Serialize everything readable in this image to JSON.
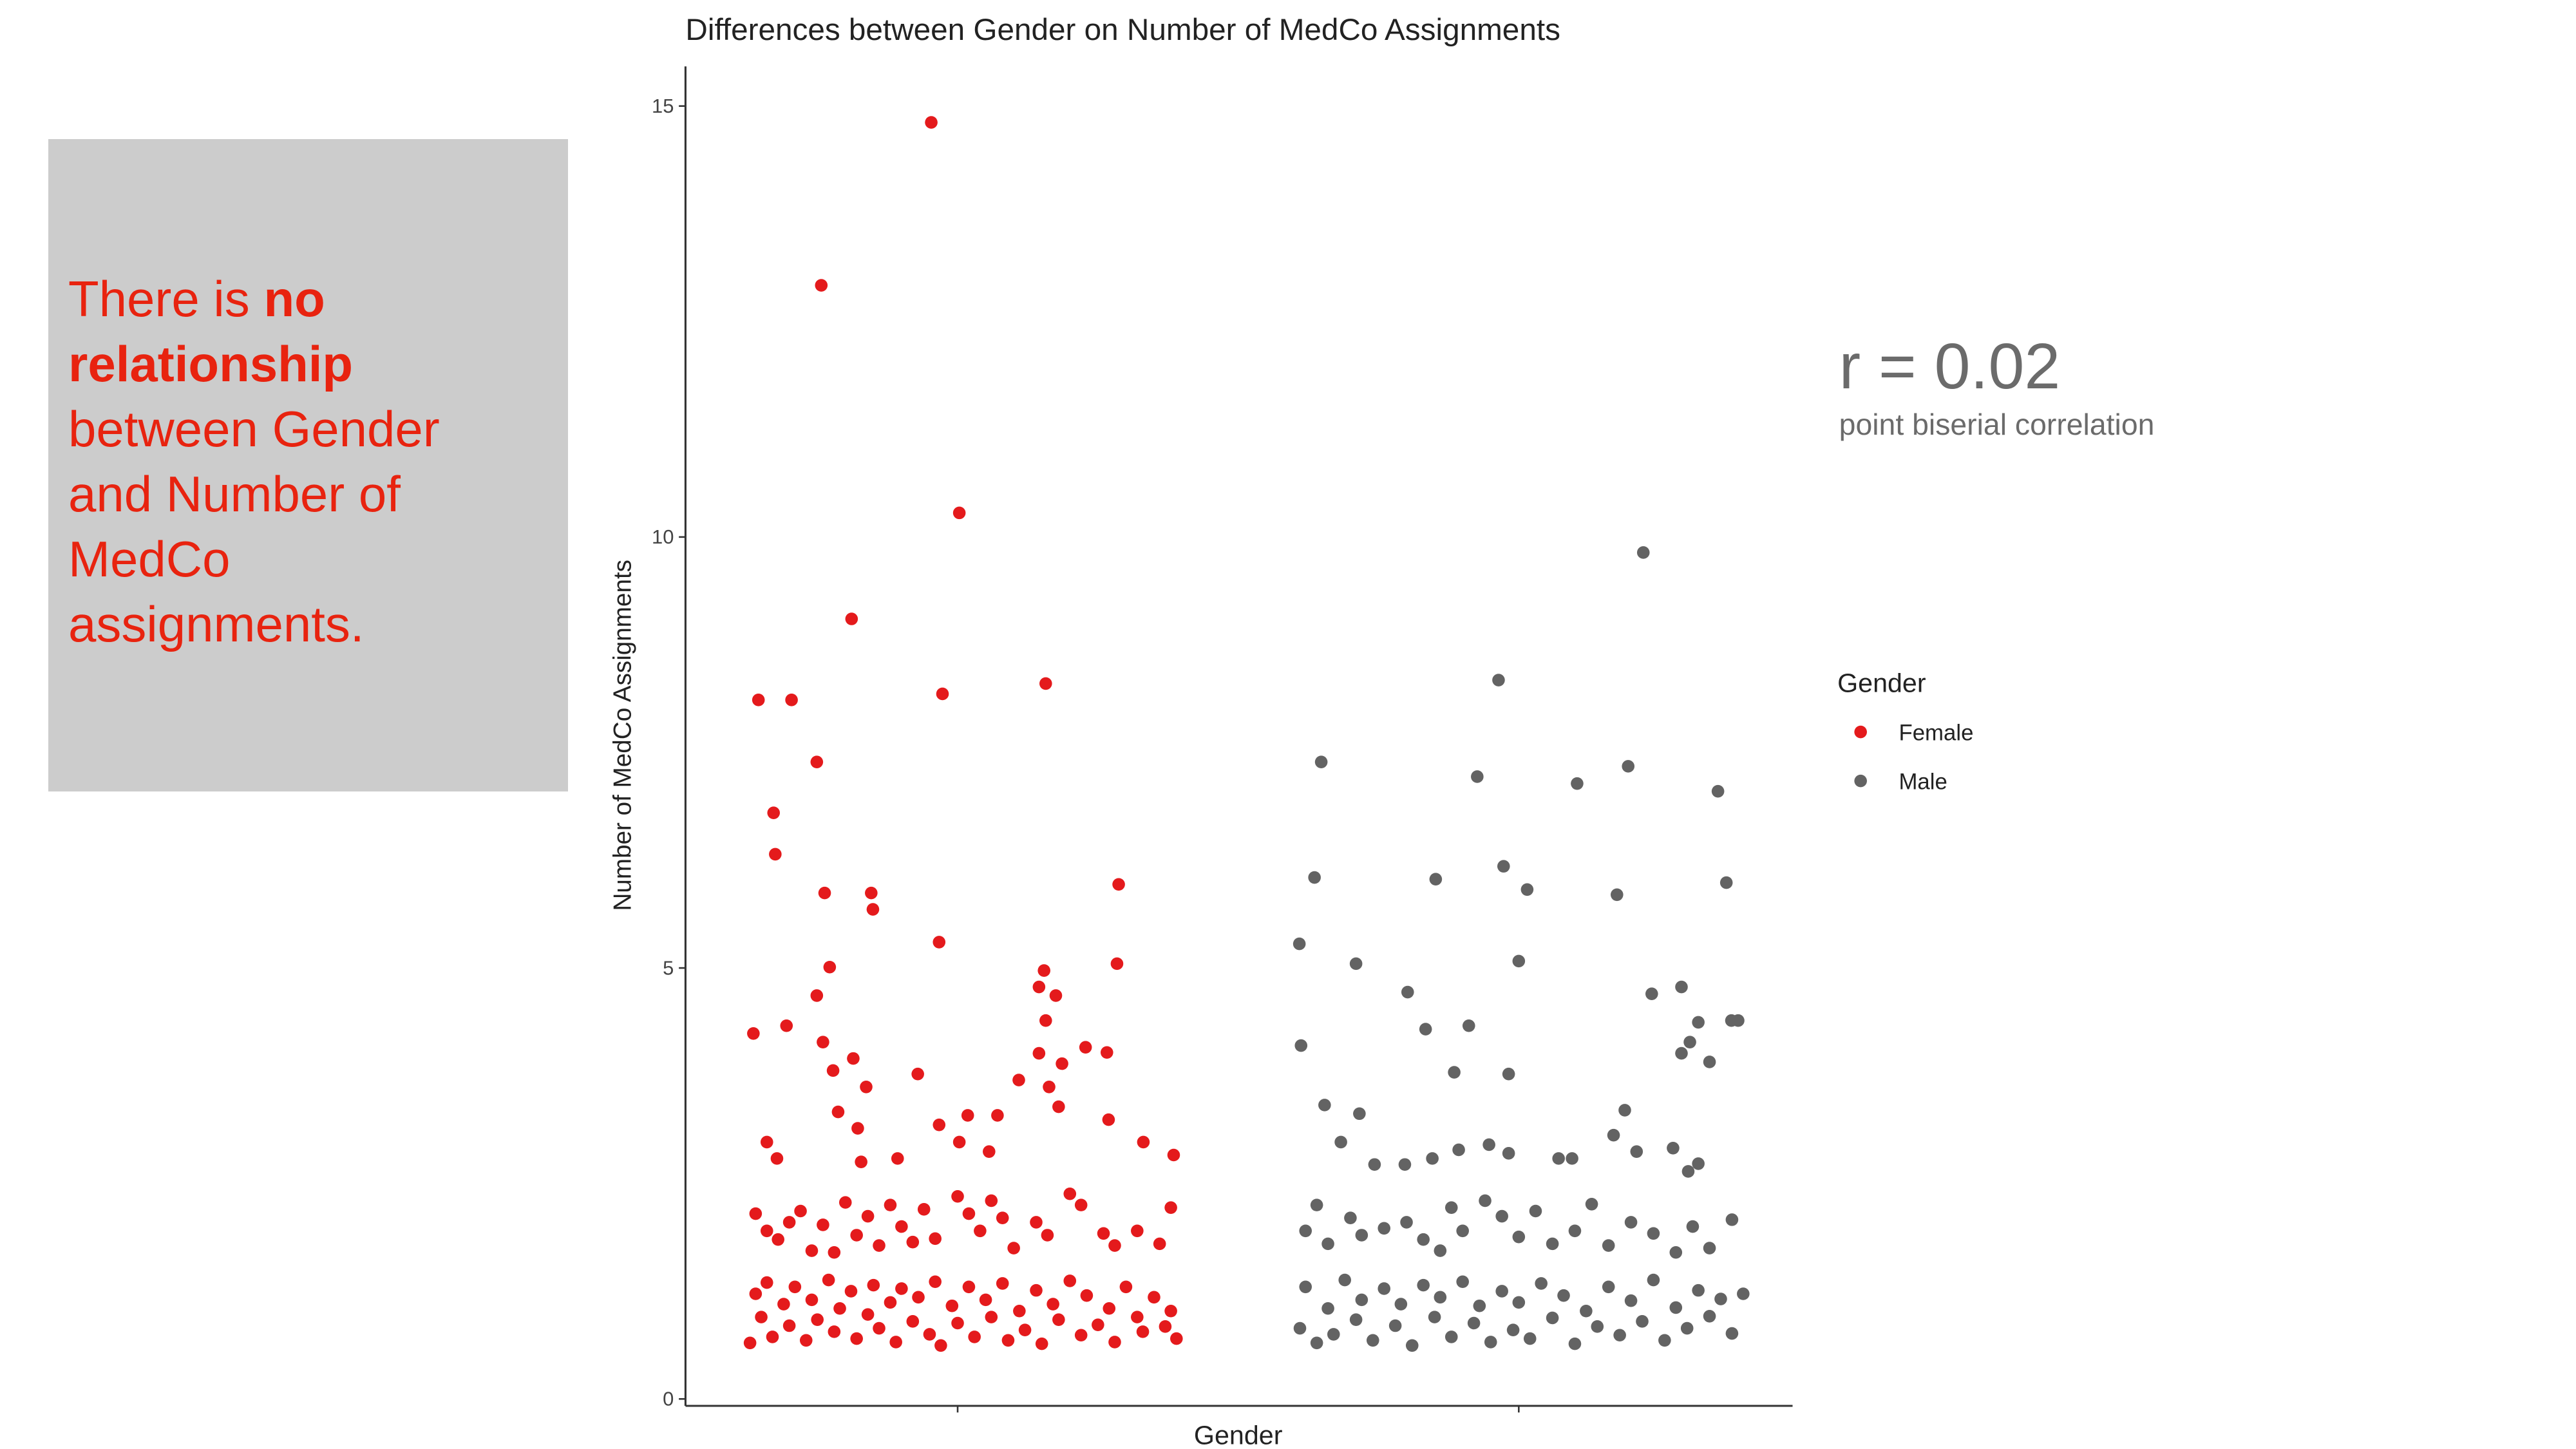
{
  "callout": {
    "lead": "There is",
    "emphasis": "no relationship",
    "rest": "between Gender and Number of MedCo assignments."
  },
  "annotation": {
    "stat": "r = 0.02",
    "caption": "point biserial correlation"
  },
  "chart_data": {
    "type": "scatter",
    "title": "Differences between Gender on Number of MedCo Assignments",
    "x_label": "Gender",
    "y_label": "Number of MedCo Assignments",
    "legend_title": "Gender",
    "xlim": [
      0.515,
      2.488
    ],
    "ylim": [
      -0.08,
      15.46
    ],
    "xticks": [
      {
        "value": 1,
        "label": null
      },
      {
        "value": 2,
        "label": null
      }
    ],
    "yticks": [
      0,
      5,
      10,
      15
    ],
    "series": [
      {
        "name": "Female",
        "color": "#e41a1c",
        "x": [
          0.953,
          0.757,
          1.003,
          0.811,
          0.645,
          0.704,
          0.973,
          1.157,
          0.749,
          0.672,
          0.675,
          1.287,
          0.763,
          0.846,
          0.849,
          0.967,
          1.284,
          0.772,
          1.154,
          0.749,
          1.145,
          1.175,
          1.157,
          0.636,
          0.695,
          0.76,
          0.814,
          1.228,
          1.266,
          1.145,
          0.778,
          1.186,
          0.929,
          0.837,
          1.163,
          1.109,
          0.787,
          1.18,
          1.018,
          1.071,
          0.967,
          0.822,
          1.269,
          0.66,
          1.003,
          1.331,
          0.678,
          0.828,
          0.893,
          1.056,
          1.385,
          0.64,
          0.66,
          0.68,
          0.7,
          0.72,
          0.74,
          0.76,
          0.78,
          0.8,
          0.82,
          0.84,
          0.86,
          0.88,
          0.9,
          0.92,
          0.94,
          0.96,
          1.0,
          1.02,
          1.04,
          1.06,
          1.08,
          1.1,
          1.14,
          1.16,
          1.2,
          1.22,
          1.26,
          1.28,
          1.32,
          1.36,
          1.38,
          0.63,
          0.64,
          0.65,
          0.66,
          0.67,
          0.69,
          0.7,
          0.71,
          0.73,
          0.74,
          0.75,
          0.77,
          0.78,
          0.79,
          0.81,
          0.82,
          0.84,
          0.85,
          0.86,
          0.88,
          0.89,
          0.9,
          0.92,
          0.93,
          0.95,
          0.96,
          0.97,
          0.99,
          1.0,
          1.02,
          1.03,
          1.05,
          1.06,
          1.08,
          1.09,
          1.11,
          1.12,
          1.14,
          1.15,
          1.17,
          1.18,
          1.2,
          1.22,
          1.23,
          1.25,
          1.27,
          1.28,
          1.3,
          1.32,
          1.33,
          1.35,
          1.37,
          1.38,
          1.39
        ],
        "values": [
          14.81,
          12.92,
          10.28,
          9.05,
          8.11,
          8.11,
          8.18,
          8.3,
          7.39,
          6.8,
          6.32,
          5.97,
          5.87,
          5.87,
          5.68,
          5.3,
          5.05,
          5.01,
          4.97,
          4.68,
          4.78,
          4.68,
          4.39,
          4.24,
          4.33,
          4.14,
          3.95,
          4.08,
          4.02,
          4.01,
          3.81,
          3.89,
          3.77,
          3.62,
          3.62,
          3.7,
          3.33,
          3.39,
          3.29,
          3.29,
          3.18,
          3.14,
          3.24,
          2.98,
          2.98,
          2.98,
          2.79,
          2.75,
          2.79,
          2.87,
          2.83,
          2.15,
          1.95,
          1.85,
          2.05,
          2.18,
          1.72,
          2.02,
          1.7,
          2.28,
          1.9,
          2.12,
          1.78,
          2.25,
          2.0,
          1.82,
          2.2,
          1.86,
          2.35,
          2.15,
          1.95,
          2.3,
          2.1,
          1.75,
          2.05,
          1.9,
          2.38,
          2.25,
          1.92,
          1.78,
          1.95,
          1.8,
          2.22,
          0.65,
          1.22,
          0.95,
          1.35,
          0.72,
          1.1,
          0.85,
          1.3,
          0.68,
          1.15,
          0.92,
          1.38,
          0.78,
          1.05,
          1.25,
          0.7,
          0.98,
          1.32,
          0.82,
          1.12,
          0.66,
          1.28,
          0.9,
          1.18,
          0.75,
          1.36,
          0.62,
          1.08,
          0.88,
          1.3,
          0.72,
          1.15,
          0.95,
          1.34,
          0.68,
          1.02,
          0.8,
          1.26,
          0.64,
          1.1,
          0.92,
          1.37,
          0.74,
          1.2,
          0.86,
          1.05,
          0.66,
          1.3,
          0.95,
          0.78,
          1.18,
          0.84,
          1.02,
          0.7
        ]
      },
      {
        "name": "Male",
        "color": "#636363",
        "x": [
          2.222,
          1.964,
          1.648,
          1.926,
          2.104,
          2.195,
          2.355,
          1.636,
          1.852,
          1.973,
          2.015,
          2.175,
          2.37,
          1.609,
          1.71,
          2.0,
          1.802,
          2.237,
          2.29,
          2.32,
          2.379,
          2.391,
          1.834,
          1.911,
          2.305,
          2.29,
          2.34,
          1.612,
          1.885,
          1.982,
          1.654,
          1.716,
          2.189,
          2.169,
          1.683,
          1.893,
          1.947,
          1.982,
          2.21,
          2.275,
          1.846,
          2.071,
          2.095,
          1.743,
          1.797,
          2.32,
          2.302,
          1.62,
          1.64,
          1.66,
          1.7,
          1.72,
          1.76,
          1.8,
          1.83,
          1.86,
          1.88,
          1.9,
          1.94,
          1.97,
          2.0,
          2.03,
          2.06,
          2.1,
          2.13,
          2.16,
          2.2,
          2.24,
          2.28,
          2.31,
          2.34,
          2.38,
          1.61,
          1.62,
          1.64,
          1.66,
          1.67,
          1.69,
          1.71,
          1.72,
          1.74,
          1.76,
          1.78,
          1.79,
          1.81,
          1.83,
          1.85,
          1.86,
          1.88,
          1.9,
          1.92,
          1.93,
          1.95,
          1.97,
          1.99,
          2.0,
          2.02,
          2.04,
          2.06,
          2.08,
          2.1,
          2.12,
          2.14,
          2.16,
          2.18,
          2.2,
          2.22,
          2.24,
          2.26,
          2.28,
          2.3,
          2.32,
          2.34,
          2.36,
          2.38,
          2.4
        ],
        "values": [
          9.82,
          8.34,
          7.39,
          7.22,
          7.14,
          7.34,
          7.05,
          6.05,
          6.03,
          6.18,
          5.91,
          5.85,
          5.99,
          5.28,
          5.05,
          5.08,
          4.72,
          4.7,
          4.78,
          4.37,
          4.39,
          4.39,
          4.29,
          4.33,
          4.14,
          4.01,
          3.91,
          4.1,
          3.79,
          3.77,
          3.41,
          3.31,
          3.35,
          3.06,
          2.98,
          2.89,
          2.95,
          2.85,
          2.87,
          2.91,
          2.79,
          2.79,
          2.79,
          2.72,
          2.72,
          2.73,
          2.64,
          1.95,
          2.25,
          1.8,
          2.1,
          1.9,
          1.98,
          2.05,
          1.85,
          1.72,
          2.22,
          1.95,
          2.3,
          2.12,
          1.88,
          2.18,
          1.8,
          1.95,
          2.26,
          1.78,
          2.05,
          1.92,
          1.7,
          2.0,
          1.75,
          2.08,
          0.82,
          1.3,
          0.65,
          1.05,
          0.75,
          1.38,
          0.92,
          1.15,
          0.68,
          1.28,
          0.85,
          1.1,
          0.62,
          1.32,
          0.95,
          1.18,
          0.72,
          1.36,
          0.88,
          1.08,
          0.66,
          1.25,
          0.8,
          1.12,
          0.7,
          1.34,
          0.94,
          1.2,
          0.64,
          1.02,
          0.84,
          1.3,
          0.74,
          1.14,
          0.9,
          1.38,
          0.68,
          1.06,
          0.82,
          1.26,
          0.96,
          1.16,
          0.76,
          1.22
        ]
      }
    ]
  }
}
